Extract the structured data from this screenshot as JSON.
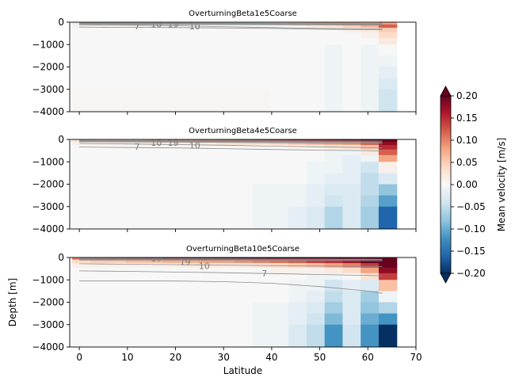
{
  "chart_data": [
    {
      "type": "heatmap",
      "title": "OverturningBeta1e5Coarse",
      "xlabel": "",
      "ylabel": "",
      "xlim": [
        -2,
        70
      ],
      "ylim": [
        -4000,
        0
      ],
      "yticks": [
        0,
        -1000,
        -2000,
        -3000,
        -4000
      ],
      "ytick_labels": [
        "0",
        "−1000",
        "−2000",
        "−3000",
        "−4000"
      ],
      "xticks": [
        0,
        10,
        20,
        30,
        40,
        50,
        60,
        70
      ],
      "xtick_labels": [],
      "data_x_range": [
        -1.5,
        66
      ],
      "cols": 18,
      "nz": 10,
      "depth_to": [
        -100,
        -250,
        -450,
        -700,
        -1000,
        -1500,
        -2000,
        -2500,
        -3000,
        -4000
      ],
      "values": [
        [
          -0.02,
          -0.02,
          -0.02,
          -0.02,
          -0.02,
          -0.02,
          -0.02,
          -0.03,
          -0.04,
          -0.04,
          -0.04,
          0.02,
          0.05,
          0.06,
          0.07,
          0.07,
          0.06,
          0.08
        ],
        [
          0.01,
          0.01,
          0.01,
          0.01,
          0.0,
          0.0,
          0.0,
          0.0,
          0.0,
          0.0,
          0.0,
          0.0,
          0.01,
          0.02,
          0.03,
          0.05,
          0.07,
          0.12
        ],
        [
          0.0,
          0.0,
          0.0,
          0.0,
          0.0,
          0.0,
          0.0,
          0.0,
          0.0,
          0.0,
          0.0,
          0.0,
          0.0,
          0.0,
          0.0,
          0.01,
          0.02,
          0.05
        ],
        [
          0.0,
          0.0,
          0.0,
          0.0,
          0.0,
          0.0,
          0.0,
          0.0,
          0.0,
          0.0,
          0.0,
          0.0,
          0.0,
          0.0,
          0.0,
          0.0,
          0.01,
          0.04
        ],
        [
          0.0,
          0.0,
          0.0,
          0.0,
          0.0,
          0.0,
          0.0,
          0.0,
          0.0,
          0.0,
          0.0,
          0.0,
          0.0,
          0.0,
          0.0,
          0.0,
          0.0,
          0.02
        ],
        [
          0.0,
          0.0,
          0.0,
          0.0,
          0.0,
          0.0,
          0.0,
          0.0,
          0.0,
          0.0,
          0.0,
          0.0,
          0.0,
          0.0,
          -0.01,
          0.0,
          -0.01,
          0.0
        ],
        [
          0.0,
          0.0,
          0.0,
          0.0,
          0.0,
          0.0,
          0.0,
          0.0,
          0.0,
          0.0,
          0.0,
          0.0,
          0.0,
          0.0,
          -0.01,
          0.0,
          -0.01,
          -0.01
        ],
        [
          0.0,
          0.0,
          0.0,
          0.0,
          0.0,
          0.0,
          0.0,
          0.0,
          0.0,
          0.0,
          0.0,
          0.0,
          0.0,
          0.0,
          -0.01,
          0.0,
          -0.01,
          -0.02
        ],
        [
          0.0,
          0.0,
          0.0,
          0.0,
          0.0,
          0.0,
          0.0,
          0.0,
          0.0,
          0.0,
          0.0,
          0.0,
          0.0,
          0.0,
          -0.01,
          0.0,
          -0.01,
          -0.03
        ],
        [
          0.005,
          0.005,
          0.005,
          0.005,
          0.005,
          0.005,
          0.005,
          0.005,
          0.005,
          0.005,
          0.005,
          0.0,
          0.0,
          0.0,
          -0.01,
          0.0,
          -0.01,
          -0.04
        ]
      ],
      "contours": [
        {
          "label": "7",
          "label_at": [
            12,
            -180
          ],
          "depth": [
            -120,
            -130,
            -160,
            -200,
            -240,
            -280,
            -300,
            -300
          ]
        },
        {
          "label": "10",
          "label_at": [
            16,
            -90
          ],
          "depth": [
            -60,
            -70,
            -80,
            -90,
            -100,
            -110,
            -120,
            -120
          ]
        },
        {
          "label": "19",
          "label_at": [
            19.5,
            -90
          ],
          "depth": [
            -40,
            -45,
            -50,
            -55,
            -60,
            -70,
            -80,
            -80
          ]
        },
        {
          "label": "10",
          "label_at": [
            24,
            -170
          ],
          "depth": [
            -220,
            -230,
            -240,
            -260,
            -280,
            -310,
            -330,
            -330
          ]
        }
      ]
    },
    {
      "type": "heatmap",
      "title": "OverturningBeta4e5Coarse",
      "xlabel": "",
      "ylabel": "",
      "xlim": [
        -2,
        70
      ],
      "ylim": [
        -4000,
        0
      ],
      "yticks": [
        0,
        -1000,
        -2000,
        -3000,
        -4000
      ],
      "ytick_labels": [
        "0",
        "−1000",
        "−2000",
        "−3000",
        "−4000"
      ],
      "xticks": [
        0,
        10,
        20,
        30,
        40,
        50,
        60,
        70
      ],
      "xtick_labels": [],
      "data_x_range": [
        -1.5,
        66
      ],
      "cols": 18,
      "nz": 10,
      "depth_to": [
        -100,
        -250,
        -450,
        -700,
        -1000,
        -1500,
        -2000,
        -2500,
        -3000,
        -4000
      ],
      "values": [
        [
          0.03,
          0.04,
          0.05,
          0.06,
          0.07,
          0.08,
          0.09,
          0.1,
          0.11,
          0.12,
          0.13,
          0.14,
          0.15,
          0.16,
          0.17,
          0.18,
          0.2,
          0.2
        ],
        [
          0.01,
          0.01,
          0.01,
          0.01,
          0.02,
          0.02,
          0.02,
          0.02,
          0.03,
          0.03,
          0.03,
          0.04,
          0.05,
          0.06,
          0.07,
          0.08,
          0.12,
          0.18
        ],
        [
          0.0,
          0.0,
          0.0,
          0.0,
          0.0,
          0.0,
          0.0,
          0.0,
          0.0,
          0.0,
          0.0,
          0.0,
          0.01,
          0.01,
          0.02,
          0.03,
          0.06,
          0.15
        ],
        [
          0.0,
          0.0,
          0.0,
          0.0,
          0.0,
          0.0,
          0.0,
          0.0,
          0.0,
          0.0,
          0.0,
          0.0,
          0.0,
          0.0,
          -0.01,
          -0.01,
          0.02,
          0.12
        ],
        [
          0.0,
          0.0,
          0.0,
          0.0,
          0.0,
          0.0,
          0.0,
          0.0,
          0.0,
          0.0,
          0.0,
          0.0,
          0.0,
          0.0,
          -0.01,
          -0.02,
          -0.01,
          0.08
        ],
        [
          0.0,
          0.0,
          0.0,
          0.0,
          0.0,
          0.0,
          0.0,
          0.0,
          0.0,
          0.0,
          0.0,
          0.0,
          0.0,
          -0.01,
          -0.01,
          -0.02,
          -0.04,
          0.01
        ],
        [
          0.0,
          0.0,
          0.0,
          0.0,
          0.0,
          0.0,
          0.0,
          0.0,
          0.0,
          0.0,
          0.0,
          0.0,
          0.0,
          -0.01,
          -0.02,
          -0.02,
          -0.05,
          -0.03
        ],
        [
          0.0,
          0.0,
          0.0,
          0.0,
          0.0,
          0.0,
          0.0,
          0.0,
          0.0,
          0.0,
          -0.01,
          -0.01,
          -0.01,
          -0.02,
          -0.03,
          -0.03,
          -0.05,
          -0.08
        ],
        [
          0.0,
          0.0,
          0.0,
          0.0,
          0.0,
          0.0,
          0.0,
          0.0,
          0.0,
          0.0,
          -0.01,
          -0.01,
          -0.01,
          -0.02,
          -0.04,
          -0.03,
          -0.06,
          -0.11
        ],
        [
          0.0,
          0.0,
          0.0,
          0.0,
          0.0,
          0.0,
          0.0,
          0.0,
          0.0,
          0.0,
          -0.01,
          -0.01,
          -0.02,
          -0.03,
          -0.06,
          -0.03,
          -0.07,
          -0.16
        ]
      ],
      "contours": [
        {
          "label": "7",
          "label_at": [
            12,
            -320
          ],
          "depth": [
            -180,
            -200,
            -230,
            -260,
            -300,
            -330,
            -360,
            -370
          ]
        },
        {
          "label": "10",
          "label_at": [
            16,
            -150
          ],
          "depth": [
            -90,
            -100,
            -110,
            -130,
            -150,
            -170,
            -190,
            -200
          ]
        },
        {
          "label": "19",
          "label_at": [
            19.5,
            -150
          ],
          "depth": [
            -60,
            -65,
            -70,
            -80,
            -90,
            -100,
            -110,
            -120
          ]
        },
        {
          "label": "10",
          "label_at": [
            24,
            -260
          ],
          "depth": [
            -340,
            -360,
            -380,
            -410,
            -450,
            -480,
            -500,
            -520
          ]
        }
      ]
    },
    {
      "type": "heatmap",
      "title": "OverturningBeta10e5Coarse",
      "xlabel": "Latitude",
      "ylabel": "Depth [m]",
      "xlim": [
        -2,
        70
      ],
      "ylim": [
        -4000,
        0
      ],
      "yticks": [
        0,
        -1000,
        -2000,
        -3000,
        -4000
      ],
      "ytick_labels": [
        "0",
        "−1000",
        "−2000",
        "−3000",
        "−4000"
      ],
      "xticks": [
        0,
        10,
        20,
        30,
        40,
        50,
        60,
        70
      ],
      "xtick_labels": [
        "0",
        "10",
        "20",
        "30",
        "40",
        "50",
        "60",
        "70"
      ],
      "data_x_range": [
        -1.5,
        66
      ],
      "cols": 18,
      "nz": 10,
      "depth_to": [
        -100,
        -250,
        -450,
        -700,
        -1000,
        -1500,
        -2000,
        -2500,
        -3000,
        -4000
      ],
      "values": [
        [
          0.1,
          0.12,
          0.13,
          0.14,
          0.15,
          0.16,
          0.17,
          0.18,
          0.19,
          0.2,
          0.2,
          0.2,
          0.2,
          0.2,
          0.2,
          0.2,
          0.2,
          0.2
        ],
        [
          0.04,
          0.05,
          0.05,
          0.06,
          0.06,
          0.07,
          0.07,
          0.08,
          0.08,
          0.09,
          0.1,
          0.11,
          0.12,
          0.14,
          0.15,
          0.17,
          0.2,
          0.2
        ],
        [
          0.01,
          0.01,
          0.01,
          0.01,
          0.01,
          0.01,
          0.02,
          0.02,
          0.02,
          0.02,
          0.03,
          0.04,
          0.05,
          0.06,
          0.08,
          0.1,
          0.14,
          0.2
        ],
        [
          0.0,
          0.0,
          0.0,
          0.0,
          0.0,
          0.0,
          0.0,
          0.0,
          0.0,
          0.0,
          0.0,
          0.01,
          0.01,
          0.01,
          0.02,
          0.04,
          0.08,
          0.18
        ],
        [
          0.0,
          0.0,
          0.0,
          0.0,
          0.0,
          0.0,
          0.0,
          0.0,
          0.0,
          0.0,
          0.0,
          0.0,
          0.0,
          -0.01,
          -0.01,
          0.0,
          0.03,
          0.14
        ],
        [
          0.0,
          0.0,
          0.0,
          0.0,
          0.0,
          0.0,
          0.0,
          0.0,
          0.0,
          0.0,
          0.0,
          0.0,
          -0.01,
          -0.01,
          -0.04,
          -0.02,
          -0.03,
          0.06
        ],
        [
          0.0,
          0.0,
          0.0,
          0.0,
          0.0,
          0.0,
          0.0,
          0.0,
          0.0,
          0.0,
          0.0,
          0.0,
          -0.01,
          -0.02,
          -0.05,
          -0.03,
          -0.07,
          -0.01
        ],
        [
          0.0,
          0.0,
          0.0,
          0.0,
          0.0,
          0.0,
          0.0,
          0.0,
          0.0,
          0.0,
          -0.01,
          -0.01,
          -0.02,
          -0.03,
          -0.07,
          -0.03,
          -0.08,
          -0.06
        ],
        [
          0.0,
          0.0,
          0.0,
          0.0,
          0.0,
          0.0,
          0.0,
          0.0,
          0.0,
          0.0,
          -0.01,
          -0.01,
          -0.02,
          -0.04,
          -0.09,
          -0.03,
          -0.1,
          -0.12
        ],
        [
          0.0,
          0.0,
          0.0,
          0.0,
          0.0,
          0.0,
          0.0,
          0.0,
          0.0,
          0.0,
          -0.01,
          -0.01,
          -0.03,
          -0.05,
          -0.12,
          -0.04,
          -0.12,
          -0.2
        ]
      ],
      "contours": [
        {
          "label": "7",
          "label_at": [
            38.5,
            -700
          ],
          "depth": [
            -1050,
            -1050,
            -1050,
            -1080,
            -1150,
            -1300,
            -1500,
            -1600
          ]
        },
        {
          "label": "10",
          "label_at": [
            26,
            -380
          ],
          "depth": [
            -600,
            -620,
            -650,
            -680,
            -720,
            -760,
            -800,
            -820
          ]
        },
        {
          "label": "19",
          "label_at": [
            22,
            -200
          ],
          "depth": [
            -280,
            -300,
            -320,
            -340,
            -360,
            -380,
            -400,
            -400
          ]
        },
        {
          "label": "10",
          "label_at": [
            16,
            -30
          ],
          "depth": [
            -40,
            -45,
            -50,
            -60,
            -70,
            -80,
            -90,
            -100
          ]
        }
      ]
    }
  ],
  "colorbar": {
    "label": "Mean velocity [m/s]",
    "vmin": -0.2,
    "vmax": 0.2,
    "ticks": [
      0.2,
      0.15,
      0.1,
      0.05,
      0.0,
      -0.05,
      -0.1,
      -0.15,
      -0.2
    ],
    "tick_labels": [
      "0.20",
      "0.15",
      "0.10",
      "0.05",
      "0.00",
      "−0.05",
      "−0.10",
      "−0.15",
      "−0.20"
    ],
    "extend": "both",
    "colormap": "RdBu_r",
    "stops": [
      "#053061",
      "#2166ac",
      "#4393c3",
      "#92c5de",
      "#d1e5f0",
      "#f7f7f7",
      "#fddbc7",
      "#f4a582",
      "#d6604d",
      "#b2182b",
      "#67001f"
    ]
  },
  "contour_color": "#8c8c8c",
  "contour_x": [
    0,
    10,
    20,
    30,
    40,
    50,
    60,
    63
  ]
}
